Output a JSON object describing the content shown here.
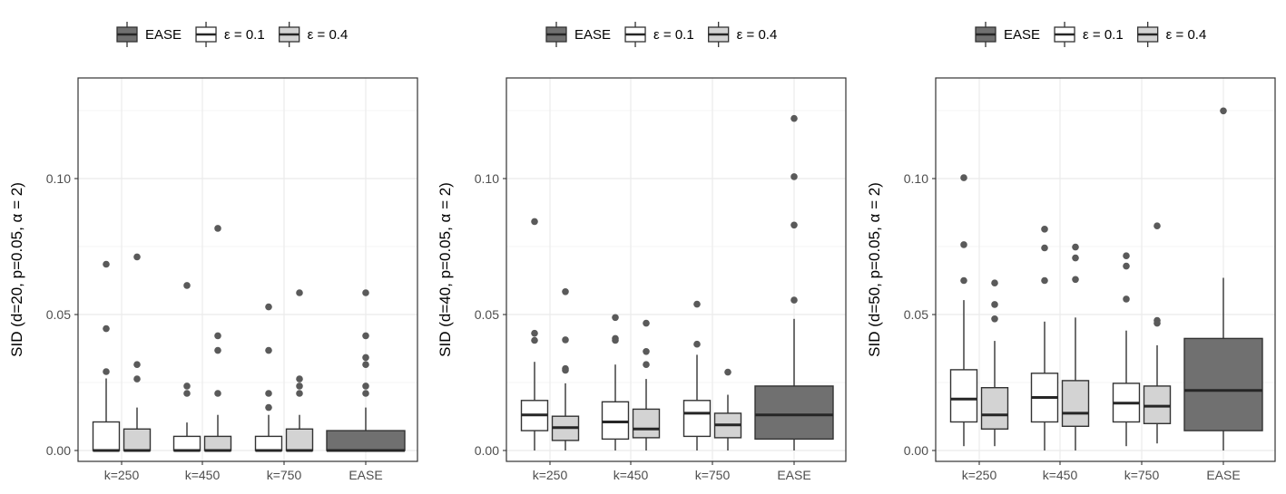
{
  "chart_data": [
    {
      "type": "box",
      "ylabel": "SID (d=20, p=0.05, α = 2)",
      "ylim": [
        -0.004,
        0.137
      ],
      "yticks": [
        0.0,
        0.05,
        0.1
      ],
      "ytick_labels": [
        "0.00",
        "0.05",
        "0.10"
      ],
      "categories": [
        "k=250",
        "k=450",
        "k=750",
        "EASE"
      ],
      "grid": true,
      "legend": {
        "position": "top",
        "entries": [
          "EASE",
          "ε = 0.1",
          "ε = 0.4"
        ]
      },
      "series": [
        {
          "name": "ε = 0.1",
          "boxes": [
            {
              "category": "k=250",
              "min": 0,
              "q1": 0,
              "median": 0,
              "q3": 0.0105,
              "max": 0.0265,
              "outliers": [
                0.029,
                0.0448,
                0.0685
              ]
            },
            {
              "category": "k=450",
              "min": 0,
              "q1": 0,
              "median": 0,
              "q3": 0.0052,
              "max": 0.0103,
              "outliers": [
                0.021,
                0.0237,
                0.0607
              ]
            },
            {
              "category": "k=750",
              "min": 0,
              "q1": 0,
              "median": 0,
              "q3": 0.0052,
              "max": 0.0131,
              "outliers": [
                0.0158,
                0.021,
                0.0368,
                0.0528
              ]
            }
          ]
        },
        {
          "name": "ε = 0.4",
          "boxes": [
            {
              "category": "k=250",
              "min": 0,
              "q1": 0,
              "median": 0,
              "q3": 0.0079,
              "max": 0.0158,
              "outliers": [
                0.0263,
                0.0316,
                0.0712
              ]
            },
            {
              "category": "k=450",
              "min": 0,
              "q1": 0,
              "median": 0,
              "q3": 0.0052,
              "max": 0.0131,
              "outliers": [
                0.021,
                0.0368,
                0.0422,
                0.0817
              ]
            },
            {
              "category": "k=750",
              "min": 0,
              "q1": 0,
              "median": 0,
              "q3": 0.0079,
              "max": 0.0131,
              "outliers": [
                0.021,
                0.0237,
                0.0263,
                0.058
              ]
            }
          ]
        },
        {
          "name": "EASE",
          "boxes": [
            {
              "category": "EASE",
              "min": 0,
              "q1": 0,
              "median": 0,
              "q3": 0.0073,
              "max": 0.0158,
              "outliers": [
                0.021,
                0.0237,
                0.0316,
                0.0342,
                0.0422,
                0.058
              ]
            }
          ]
        }
      ]
    },
    {
      "type": "box",
      "ylabel": "SID (d=40, p=0.05, α = 2)",
      "ylim": [
        -0.004,
        0.137
      ],
      "yticks": [
        0.0,
        0.05,
        0.1
      ],
      "ytick_labels": [
        "0.00",
        "0.05",
        "0.10"
      ],
      "categories": [
        "k=250",
        "k=450",
        "k=750",
        "EASE"
      ],
      "grid": true,
      "legend": {
        "position": "top",
        "entries": [
          "EASE",
          "ε = 0.1",
          "ε = 0.4"
        ]
      },
      "series": [
        {
          "name": "ε = 0.1",
          "boxes": [
            {
              "category": "k=250",
              "min": 0,
              "q1": 0.0073,
              "median": 0.0131,
              "q3": 0.0184,
              "max": 0.0326,
              "outliers": [
                0.0405,
                0.0431,
                0.0842
              ]
            },
            {
              "category": "k=450",
              "min": 0,
              "q1": 0.0042,
              "median": 0.0105,
              "q3": 0.0179,
              "max": 0.0316,
              "outliers": [
                0.0405,
                0.0412,
                0.0489
              ]
            },
            {
              "category": "k=750",
              "min": 0,
              "q1": 0.0052,
              "median": 0.0137,
              "q3": 0.0184,
              "max": 0.0352,
              "outliers": [
                0.0391,
                0.0538
              ]
            }
          ]
        },
        {
          "name": "ε = 0.4",
          "boxes": [
            {
              "category": "k=250",
              "min": 0,
              "q1": 0.0037,
              "median": 0.0084,
              "q3": 0.0126,
              "max": 0.0247,
              "outliers": [
                0.0295,
                0.0301,
                0.0407,
                0.0584
              ]
            },
            {
              "category": "k=450",
              "min": 0,
              "q1": 0.0047,
              "median": 0.0079,
              "q3": 0.0152,
              "max": 0.0263,
              "outliers": [
                0.0316,
                0.0364,
                0.0468
              ]
            },
            {
              "category": "k=750",
              "min": 0,
              "q1": 0.0047,
              "median": 0.0094,
              "q3": 0.0137,
              "max": 0.0205,
              "outliers": [
                0.0288
              ]
            }
          ]
        },
        {
          "name": "EASE",
          "boxes": [
            {
              "category": "EASE",
              "min": 0,
              "q1": 0.0042,
              "median": 0.0131,
              "q3": 0.0237,
              "max": 0.0484,
              "outliers": [
                0.0553,
                0.0829,
                0.1007,
                0.1221
              ]
            }
          ]
        }
      ]
    },
    {
      "type": "box",
      "ylabel": "SID (d=50, p=0.05, α = 2)",
      "ylim": [
        -0.004,
        0.137
      ],
      "yticks": [
        0.0,
        0.05,
        0.1
      ],
      "ytick_labels": [
        "0.00",
        "0.05",
        "0.10"
      ],
      "categories": [
        "k=250",
        "k=450",
        "k=750",
        "EASE"
      ],
      "grid": true,
      "legend": {
        "position": "top",
        "entries": [
          "EASE",
          "ε = 0.1",
          "ε = 0.4"
        ]
      },
      "series": [
        {
          "name": "ε = 0.1",
          "boxes": [
            {
              "category": "k=250",
              "min": 0.0016,
              "q1": 0.0105,
              "median": 0.0189,
              "q3": 0.0297,
              "max": 0.0553,
              "outliers": [
                0.0625,
                0.0757,
                0.1003
              ]
            },
            {
              "category": "k=450",
              "min": 0,
              "q1": 0.0105,
              "median": 0.0195,
              "q3": 0.0284,
              "max": 0.0474,
              "outliers": [
                0.0625,
                0.0745,
                0.0814
              ]
            },
            {
              "category": "k=750",
              "min": 0.0016,
              "q1": 0.0105,
              "median": 0.0174,
              "q3": 0.0247,
              "max": 0.0441,
              "outliers": [
                0.0557,
                0.0678,
                0.0716
              ]
            }
          ]
        },
        {
          "name": "ε = 0.4",
          "boxes": [
            {
              "category": "k=250",
              "min": 0.0016,
              "q1": 0.0079,
              "median": 0.0131,
              "q3": 0.0231,
              "max": 0.0403,
              "outliers": [
                0.0484,
                0.0537,
                0.0616
              ]
            },
            {
              "category": "k=450",
              "min": 0,
              "q1": 0.0089,
              "median": 0.0137,
              "q3": 0.0257,
              "max": 0.0489,
              "outliers": [
                0.0629,
                0.0708,
                0.0748
              ]
            },
            {
              "category": "k=750",
              "min": 0.0026,
              "q1": 0.0099,
              "median": 0.0163,
              "q3": 0.0237,
              "max": 0.0387,
              "outliers": [
                0.0468,
                0.0478,
                0.0826
              ]
            }
          ]
        },
        {
          "name": "EASE",
          "boxes": [
            {
              "category": "EASE",
              "min": 0,
              "q1": 0.0073,
              "median": 0.0221,
              "q3": 0.0412,
              "max": 0.0635,
              "outliers": [
                0.1249
              ]
            }
          ]
        }
      ]
    }
  ],
  "colors": {
    "EASE": "#707070",
    "ε = 0.1": "#ffffff",
    "ε = 0.4": "#d3d3d3",
    "outlier": "#5a5a5a",
    "grid": "#ebebeb",
    "border": "#333333"
  }
}
